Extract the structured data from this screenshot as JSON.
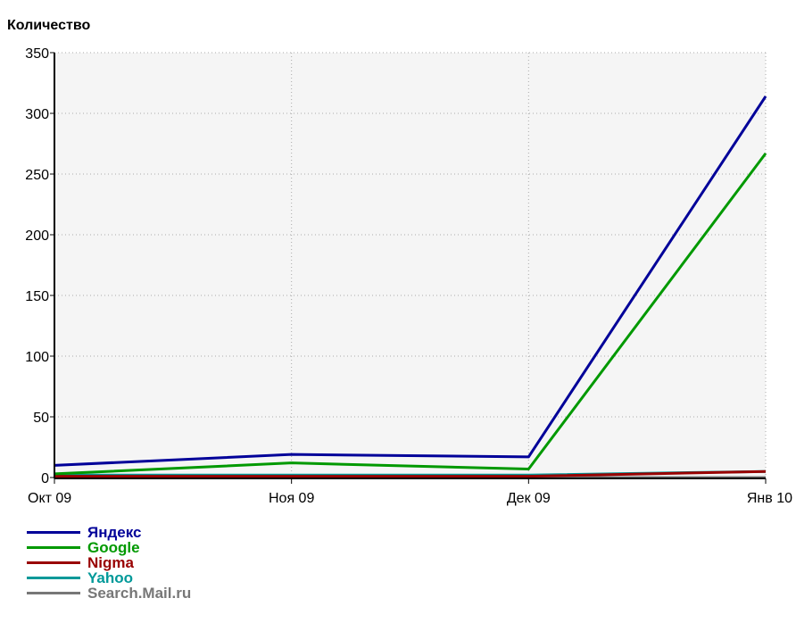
{
  "chart_data": {
    "type": "line",
    "title": "Количество",
    "xlabel": "",
    "ylabel": "Количество",
    "categories": [
      "Окт 09",
      "Ноя 09",
      "Дек 09",
      "Янв 10"
    ],
    "ylim": [
      0,
      350
    ],
    "yticks": [
      0,
      50,
      100,
      150,
      200,
      250,
      300,
      350
    ],
    "grid": true,
    "legend_position": "bottom-left",
    "series": [
      {
        "name": "Яндекс",
        "color": "#000099",
        "values": [
          10,
          19,
          17,
          314
        ]
      },
      {
        "name": "Google",
        "color": "#009900",
        "values": [
          3,
          12,
          7,
          267
        ]
      },
      {
        "name": "Nigma",
        "color": "#990000",
        "values": [
          1,
          1,
          1,
          5
        ]
      },
      {
        "name": "Yahoo",
        "color": "#009999",
        "values": [
          2,
          2,
          2,
          5
        ]
      },
      {
        "name": "Search.Mail.ru",
        "color": "#777777",
        "values": [
          0,
          0,
          0,
          0
        ]
      }
    ]
  }
}
